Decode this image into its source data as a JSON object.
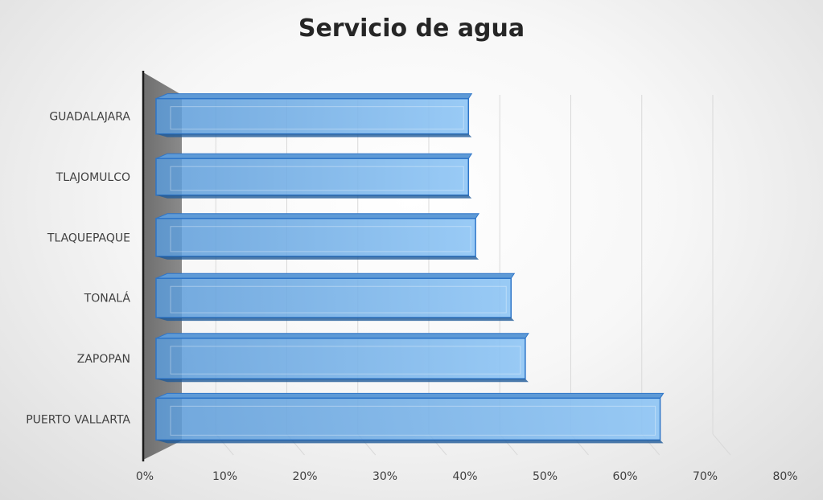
{
  "chart_data": {
    "type": "bar",
    "orientation": "horizontal",
    "title": "Servicio de agua",
    "categories": [
      "GUADALAJARA",
      "TLAJOMULCO",
      "TLAQUEPAQUE",
      "TONALÁ",
      "ZAPOPAN",
      "PUERTO VALLARTA"
    ],
    "values": [
      0.44,
      0.44,
      0.45,
      0.5,
      0.52,
      0.71
    ],
    "xlim": [
      0,
      0.8
    ],
    "x_ticks": [
      0,
      0.1,
      0.2,
      0.3,
      0.4,
      0.5,
      0.6,
      0.7,
      0.8
    ],
    "x_tick_labels": [
      "0%",
      "10%",
      "20%",
      "30%",
      "40%",
      "50%",
      "60%",
      "70%",
      "80%"
    ],
    "grid": true,
    "legend": "none",
    "colors": {
      "bar_fill": "#7fb8ea",
      "bar_stroke": "#2e75c8",
      "wall": "#7a7a7a",
      "axis": "#1a1a1a",
      "grid": "#d9d9d9"
    }
  }
}
